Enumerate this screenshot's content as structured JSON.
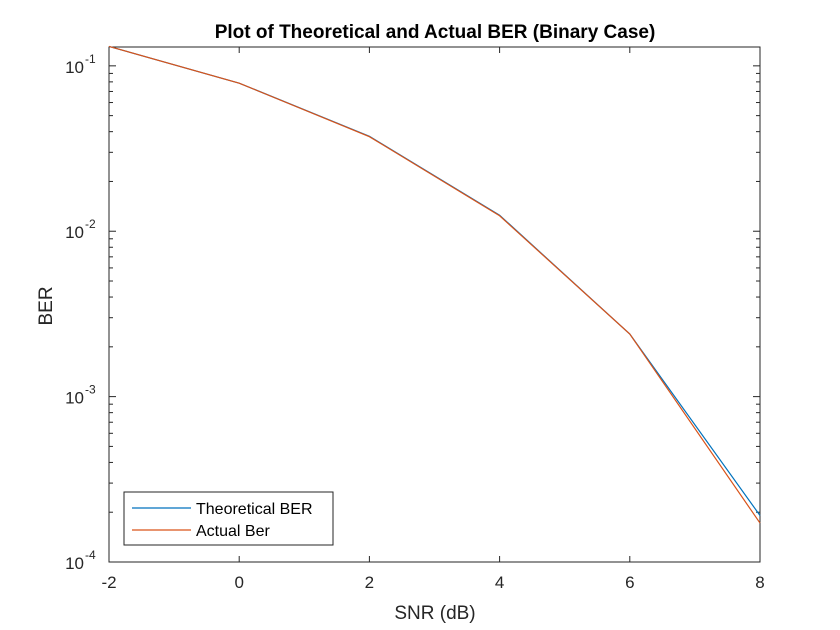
{
  "chart_data": {
    "type": "line",
    "title": "Plot of Theoretical and Actual BER (Binary Case)",
    "xlabel": "SNR (dB)",
    "ylabel": "BER",
    "x": [
      -2,
      0,
      2,
      4,
      6,
      8
    ],
    "xlim": [
      -2,
      8
    ],
    "ylim": [
      0.0001,
      0.13
    ],
    "yscale": "log",
    "xticks": [
      -2,
      0,
      2,
      4,
      6,
      8
    ],
    "yticks": [
      {
        "value": 0.1,
        "base": "10",
        "exp": "-1"
      },
      {
        "value": 0.01,
        "base": "10",
        "exp": "-2"
      },
      {
        "value": 0.001,
        "base": "10",
        "exp": "-3"
      },
      {
        "value": 0.0001,
        "base": "10",
        "exp": "-4"
      }
    ],
    "grid": false,
    "legend_position": "bottom-left",
    "series": [
      {
        "name": "Theoretical BER",
        "color": "#0072BD",
        "values": [
          0.131,
          0.0786,
          0.0375,
          0.0125,
          0.00239,
          0.000191
        ]
      },
      {
        "name": "Actual Ber",
        "color": "#D95319",
        "values": [
          0.131,
          0.0786,
          0.0373,
          0.0124,
          0.00239,
          0.000172
        ]
      }
    ]
  }
}
